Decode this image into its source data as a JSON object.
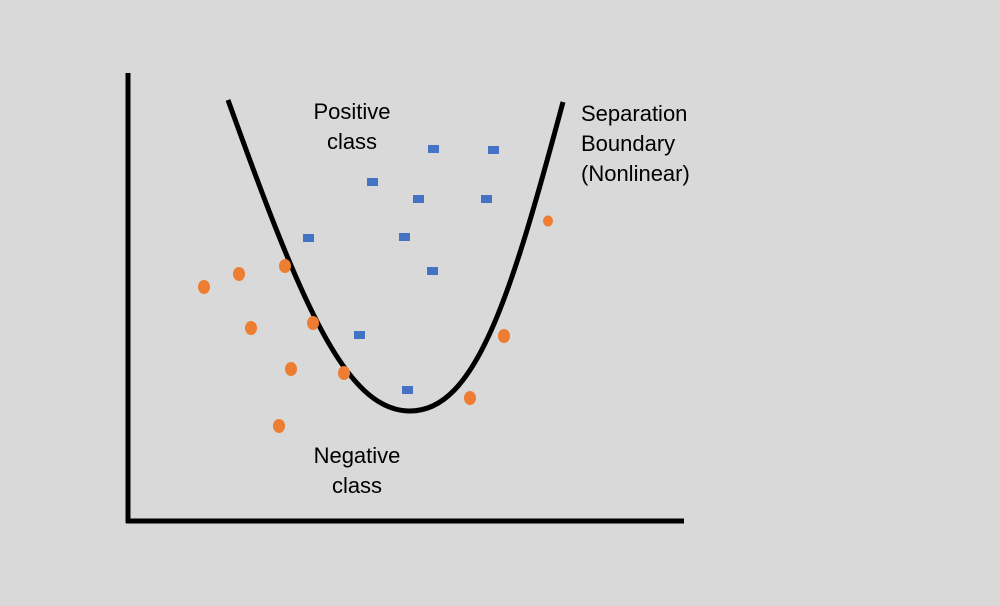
{
  "positive_label": [
    "Positive",
    "class"
  ],
  "boundary_label": [
    "Separation",
    "Boundary",
    "(Nonlinear)"
  ],
  "negative_label": [
    "Negative",
    "class"
  ]
}
